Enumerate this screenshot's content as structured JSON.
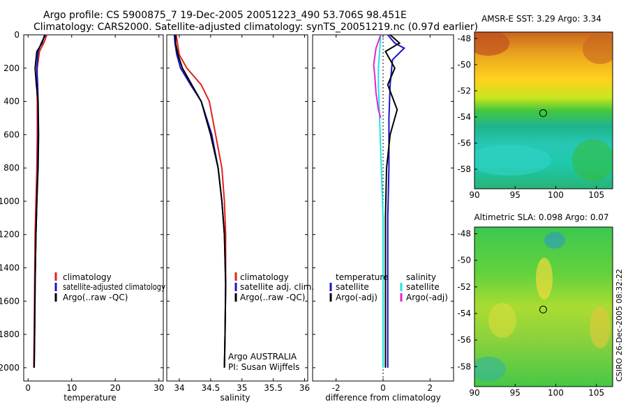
{
  "header": {
    "line1": "Argo profile: CS 5900875_7 19-Dec-2005 20051223_490 53.706S 98.451E",
    "line2": "Climatology: CARS2000. Satellite-adjusted climatology: synTS_20051219.nc (0.97d earlier)"
  },
  "colors": {
    "climatology": "#e32119",
    "satellite": "#1414c8",
    "argo": "#000000",
    "satellite_salinity": "#1fe5e5",
    "argo_adj_salinity": "#e023d4"
  },
  "chart_data": [
    {
      "type": "line",
      "title": "",
      "xlabel": "temperature",
      "ylabel": "",
      "xlim": [
        -1,
        31
      ],
      "ylim": [
        2080,
        0
      ],
      "xticks": [
        "0",
        "10",
        "20",
        "30"
      ],
      "yticks": [
        "0",
        "200",
        "400",
        "600",
        "800",
        "1000",
        "1200",
        "1400",
        "1600",
        "1800",
        "2000"
      ],
      "series": [
        {
          "name": "climatology",
          "x": [
            4.3,
            3.6,
            2.6,
            2.1,
            2.0,
            2.1,
            2.1,
            2.0,
            1.8,
            1.6,
            1.5,
            1.4,
            1.3
          ],
          "y": [
            0,
            50,
            100,
            200,
            300,
            400,
            600,
            800,
            1000,
            1200,
            1500,
            1800,
            2000
          ]
        },
        {
          "name": "satellite-adjusted climatology",
          "x": [
            4.0,
            3.0,
            2.3,
            2.0,
            2.2,
            2.3,
            2.3,
            2.2,
            2.0,
            1.8,
            1.6,
            1.5,
            1.4
          ],
          "y": [
            0,
            50,
            100,
            200,
            300,
            400,
            600,
            800,
            1000,
            1200,
            1500,
            1800,
            2000
          ]
        },
        {
          "name": "Argo(..raw -QC)",
          "x": [
            3.8,
            3.2,
            2.0,
            1.6,
            1.9,
            2.3,
            2.4,
            2.3,
            2.0,
            1.8,
            1.6,
            1.5,
            1.4
          ],
          "y": [
            0,
            50,
            100,
            200,
            300,
            400,
            600,
            800,
            1000,
            1200,
            1500,
            1800,
            2000
          ]
        }
      ],
      "legend": {
        "position": "bottom-right",
        "entries": [
          "climatology",
          "satellite-adjusted climatology",
          "Argo(..raw -QC)"
        ]
      }
    },
    {
      "type": "line",
      "title": "",
      "xlabel": "salinity",
      "ylabel": "",
      "xlim": [
        33.8,
        36.05
      ],
      "ylim": [
        2080,
        0
      ],
      "xticks": [
        "34",
        "34.5",
        "35",
        "35.5",
        "36"
      ],
      "series": [
        {
          "name": "climatology",
          "x": [
            33.95,
            33.97,
            34.0,
            34.12,
            34.35,
            34.48,
            34.58,
            34.68,
            34.72,
            34.74,
            34.74,
            34.73,
            34.72
          ],
          "y": [
            0,
            50,
            120,
            200,
            300,
            400,
            600,
            800,
            1000,
            1200,
            1500,
            1800,
            2000
          ]
        },
        {
          "name": "satellite adj. clim.",
          "x": [
            33.92,
            33.93,
            33.96,
            34.02,
            34.18,
            34.35,
            34.52,
            34.62,
            34.68,
            34.72,
            34.74,
            34.73,
            34.72
          ],
          "y": [
            0,
            50,
            120,
            200,
            300,
            400,
            600,
            800,
            1000,
            1200,
            1500,
            1800,
            2000
          ]
        },
        {
          "name": "Argo(..raw -QC)",
          "x": [
            33.94,
            33.94,
            33.98,
            34.05,
            34.2,
            34.35,
            34.5,
            34.62,
            34.68,
            34.72,
            34.74,
            34.73,
            34.72
          ],
          "y": [
            0,
            50,
            120,
            200,
            300,
            400,
            600,
            800,
            1000,
            1200,
            1500,
            1800,
            2000
          ]
        }
      ],
      "legend": {
        "position": "bottom-right",
        "entries": [
          "climatology",
          "satellite adj. clim.",
          "Argo(..raw -QC)"
        ]
      },
      "annotations": [
        "Argo AUSTRALIA",
        "PI: Susan Wijffels"
      ]
    },
    {
      "type": "line",
      "title": "",
      "xlabel": "difference from climatology",
      "ylabel": "",
      "xlim": [
        -3,
        3
      ],
      "ylim": [
        2080,
        0
      ],
      "xticks": [
        "-2",
        "0",
        "2"
      ],
      "series": [
        {
          "name": "temperature satellite",
          "x": [
            0.2,
            0.5,
            0.9,
            0.4,
            0.3,
            0.25,
            0.25,
            0.2,
            0.2,
            0.2,
            0.2,
            0.2
          ],
          "y": [
            0,
            50,
            80,
            150,
            300,
            500,
            800,
            1100,
            1400,
            1700,
            1900,
            2000
          ]
        },
        {
          "name": "temperature Argo(-adj)",
          "x": [
            0.3,
            0.7,
            0.1,
            0.5,
            0.2,
            0.6,
            0.3,
            0.15,
            0.1,
            0.1,
            0.1,
            0.1
          ],
          "y": [
            0,
            50,
            100,
            200,
            300,
            450,
            600,
            800,
            1100,
            1400,
            1800,
            2000
          ]
        },
        {
          "name": "salinity satellite",
          "x": [
            -0.1,
            -0.15,
            -0.2,
            -0.2,
            -0.15,
            -0.1,
            -0.05,
            0.0,
            0.0,
            0.0,
            0.0
          ],
          "y": [
            0,
            100,
            200,
            300,
            500,
            700,
            900,
            1100,
            1400,
            1700,
            2000
          ]
        },
        {
          "name": "salinity Argo(-adj)",
          "x": [
            -0.1,
            -0.3,
            -0.4,
            -0.35,
            -0.3,
            -0.2,
            -0.1
          ],
          "y": [
            0,
            80,
            180,
            250,
            350,
            450,
            500
          ]
        }
      ],
      "legend": {
        "position": "bottom",
        "entries": [
          "temperature",
          "satellite",
          "Argo(-adj)",
          "salinity",
          "satellite",
          "Argo(-adj)"
        ]
      }
    },
    {
      "type": "heatmap",
      "title": "AMSR-E SST: 3.29 Argo: 3.34",
      "xlim": [
        90,
        107
      ],
      "ylim": [
        -59.5,
        -47.5
      ],
      "xticks": [
        "90",
        "95",
        "100",
        "105"
      ],
      "yticks": [
        "-48",
        "-50",
        "-52",
        "-54",
        "-56",
        "-58"
      ],
      "marker": {
        "lon": 98.451,
        "lat": -53.706
      }
    },
    {
      "type": "heatmap",
      "title": "Altimetric SLA: 0.098 Argo: 0.07",
      "xlim": [
        90,
        107
      ],
      "ylim": [
        -59.5,
        -47.5
      ],
      "xticks": [
        "90",
        "95",
        "100",
        "105"
      ],
      "yticks": [
        "-48",
        "-50",
        "-52",
        "-54",
        "-56",
        "-58"
      ],
      "marker": {
        "lon": 98.451,
        "lat": -53.706
      }
    }
  ],
  "side_label": "CSIRO 26-Dec-2005 08:32:22"
}
